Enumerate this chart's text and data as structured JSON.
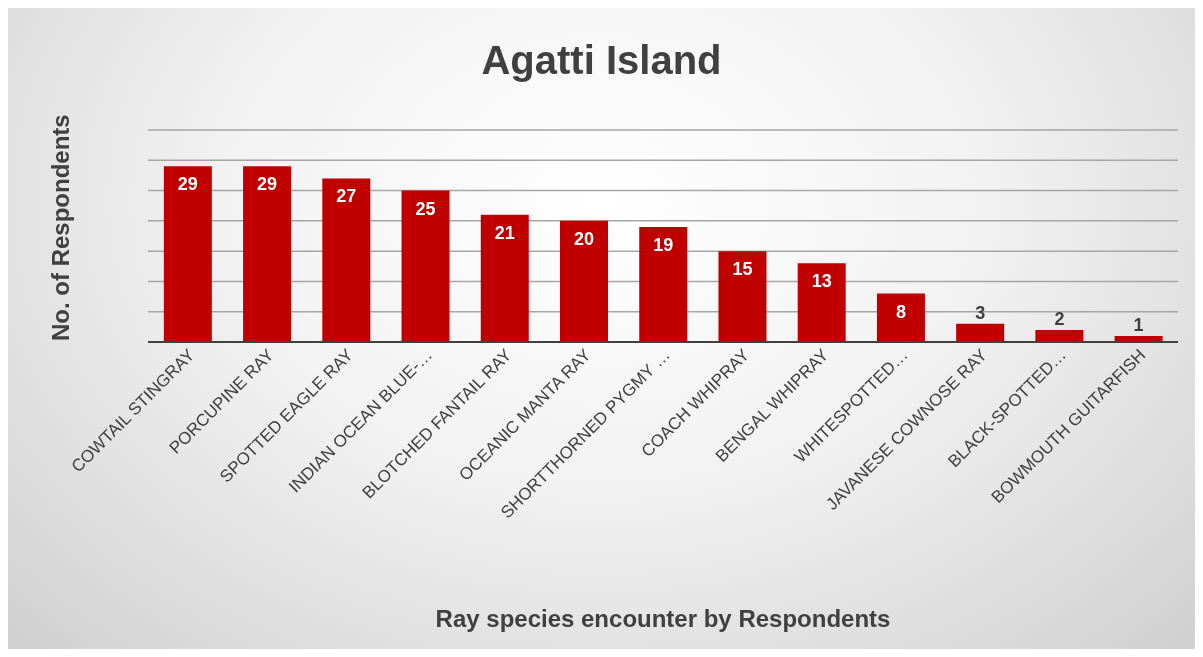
{
  "chart_data": {
    "type": "bar",
    "title": "Agatti Island",
    "xlabel": "Ray  species encounter by Respondents",
    "ylabel": "No. of Respondents",
    "categories": [
      "COWTAIL STINGRAY",
      "PORCUPINE RAY",
      "SPOTTED EAGLE RAY",
      "INDIAN OCEAN BLUE-…",
      "BLOTCHED FANTAIL RAY",
      "OCEANIC MANTA RAY",
      "SHORTTHORNED PYGMY …",
      "COACH WHIPRAY",
      "BENGAL WHIPRAY",
      "WHITESPOTTED…",
      "JAVANESE COWNOSE RAY",
      "BLACK-SPOTTED…",
      "BOWMOUTH GUITARFISH"
    ],
    "values": [
      29,
      29,
      27,
      25,
      21,
      20,
      19,
      15,
      13,
      8,
      3,
      2,
      1
    ],
    "color": "#c00000",
    "tick_labels": "x",
    "grid": "y",
    "data_labels": true,
    "legend": false
  }
}
